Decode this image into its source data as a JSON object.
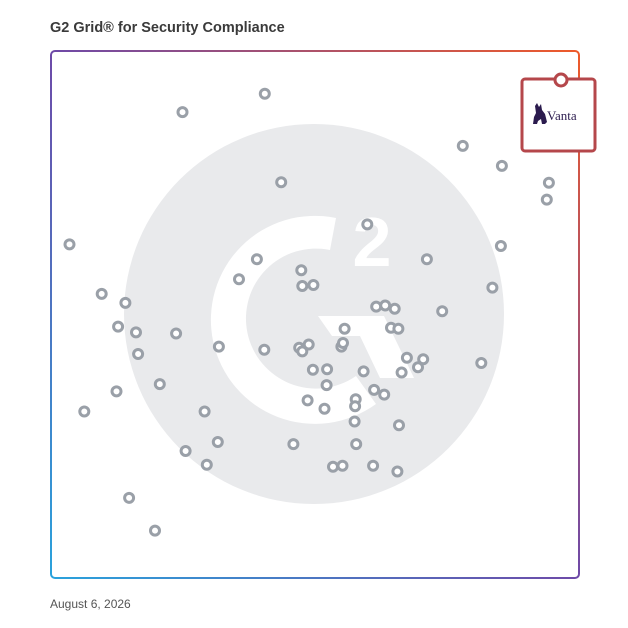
{
  "chart_data": {
    "type": "scatter",
    "title": "G2 Grid® for Security Compliance",
    "date": "August 6, 2026",
    "xlim": [
      0,
      100
    ],
    "ylim": [
      0,
      100
    ],
    "grid": "quadrants",
    "colors": {
      "point": "#9aa0a8",
      "highlight": "#b5474b",
      "logo": "#2b1b4e",
      "watermark": "#e9eaec"
    },
    "highlight": {
      "label": "Vanta",
      "x": 96,
      "y": 96
    },
    "points": [
      {
        "x": 40.5,
        "y": 91.9
      },
      {
        "x": 24.9,
        "y": 88.4
      },
      {
        "x": 43.6,
        "y": 75.1
      },
      {
        "x": 3.5,
        "y": 63.3
      },
      {
        "x": 78.0,
        "y": 82.0
      },
      {
        "x": 85.4,
        "y": 78.2
      },
      {
        "x": 94.3,
        "y": 75.0
      },
      {
        "x": 93.9,
        "y": 71.8
      },
      {
        "x": 59.9,
        "y": 67.1
      },
      {
        "x": 85.2,
        "y": 63.0
      },
      {
        "x": 71.2,
        "y": 60.5
      },
      {
        "x": 39.0,
        "y": 60.5
      },
      {
        "x": 47.4,
        "y": 58.4
      },
      {
        "x": 35.6,
        "y": 56.7
      },
      {
        "x": 47.6,
        "y": 55.4
      },
      {
        "x": 49.7,
        "y": 55.6
      },
      {
        "x": 83.6,
        "y": 55.1
      },
      {
        "x": 9.6,
        "y": 53.9
      },
      {
        "x": 14.1,
        "y": 52.2
      },
      {
        "x": 61.6,
        "y": 51.5
      },
      {
        "x": 63.3,
        "y": 51.7
      },
      {
        "x": 65.1,
        "y": 51.1
      },
      {
        "x": 74.1,
        "y": 50.6
      },
      {
        "x": 12.7,
        "y": 47.7
      },
      {
        "x": 16.1,
        "y": 46.6
      },
      {
        "x": 23.7,
        "y": 46.4
      },
      {
        "x": 55.6,
        "y": 47.3
      },
      {
        "x": 64.4,
        "y": 47.5
      },
      {
        "x": 65.8,
        "y": 47.3
      },
      {
        "x": 31.8,
        "y": 43.9
      },
      {
        "x": 40.4,
        "y": 43.3
      },
      {
        "x": 47.0,
        "y": 43.7
      },
      {
        "x": 47.6,
        "y": 43.0
      },
      {
        "x": 48.8,
        "y": 44.3
      },
      {
        "x": 55.0,
        "y": 43.9
      },
      {
        "x": 55.3,
        "y": 44.6
      },
      {
        "x": 16.5,
        "y": 42.5
      },
      {
        "x": 67.4,
        "y": 41.8
      },
      {
        "x": 69.5,
        "y": 40.0
      },
      {
        "x": 70.5,
        "y": 41.5
      },
      {
        "x": 81.5,
        "y": 40.8
      },
      {
        "x": 49.6,
        "y": 39.5
      },
      {
        "x": 52.3,
        "y": 39.6
      },
      {
        "x": 59.2,
        "y": 39.2
      },
      {
        "x": 66.4,
        "y": 39.0
      },
      {
        "x": 20.6,
        "y": 36.8
      },
      {
        "x": 52.2,
        "y": 36.6
      },
      {
        "x": 61.2,
        "y": 35.7
      },
      {
        "x": 63.1,
        "y": 34.8
      },
      {
        "x": 12.4,
        "y": 35.4
      },
      {
        "x": 48.6,
        "y": 33.7
      },
      {
        "x": 57.7,
        "y": 33.9
      },
      {
        "x": 57.6,
        "y": 32.6
      },
      {
        "x": 51.8,
        "y": 32.1
      },
      {
        "x": 6.3,
        "y": 31.6
      },
      {
        "x": 29.1,
        "y": 31.6
      },
      {
        "x": 57.5,
        "y": 29.7
      },
      {
        "x": 65.9,
        "y": 29.0
      },
      {
        "x": 31.6,
        "y": 25.8
      },
      {
        "x": 45.9,
        "y": 25.4
      },
      {
        "x": 57.8,
        "y": 25.4
      },
      {
        "x": 25.5,
        "y": 24.1
      },
      {
        "x": 29.5,
        "y": 21.5
      },
      {
        "x": 53.4,
        "y": 21.1
      },
      {
        "x": 55.2,
        "y": 21.3
      },
      {
        "x": 61.0,
        "y": 21.3
      },
      {
        "x": 65.6,
        "y": 20.2
      },
      {
        "x": 14.8,
        "y": 15.2
      },
      {
        "x": 19.7,
        "y": 9.0
      }
    ]
  }
}
